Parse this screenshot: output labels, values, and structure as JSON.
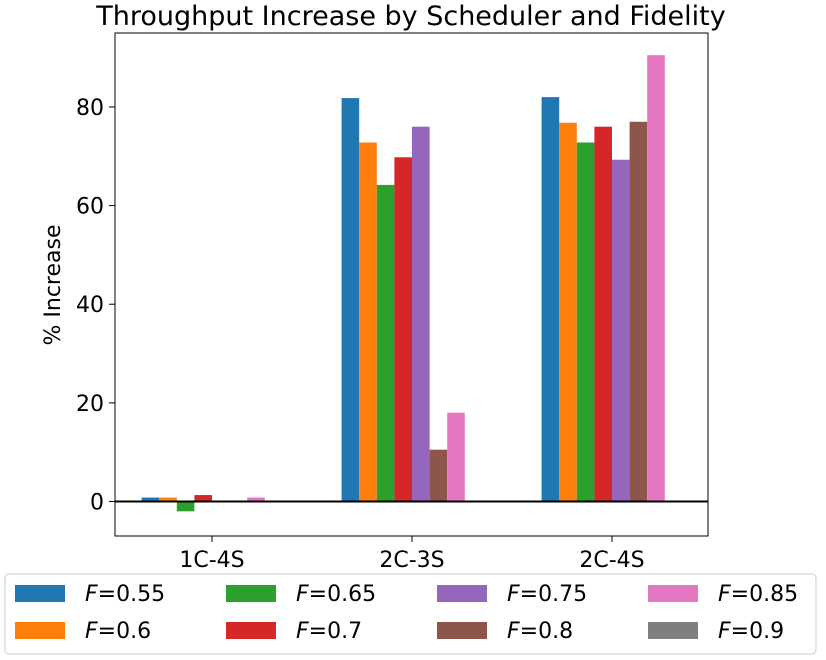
{
  "chart_data": {
    "type": "bar",
    "title": "Throughput Increase by Scheduler and Fidelity",
    "xlabel": "",
    "ylabel": "% Increase",
    "categories": [
      "1C-4S",
      "2C-3S",
      "2C-4S"
    ],
    "ylim": [
      -7,
      95
    ],
    "yticks": [
      0,
      20,
      40,
      60,
      80
    ],
    "zero_line": true,
    "grid": false,
    "legend_position": "bottom",
    "series": [
      {
        "name": "F=0.55",
        "var": "F",
        "val": "=0.55",
        "color": "#1f77b4",
        "values": [
          0.8,
          81.8,
          82.0
        ]
      },
      {
        "name": "F=0.6",
        "var": "F",
        "val": "=0.6",
        "color": "#ff7f0e",
        "values": [
          0.8,
          72.8,
          76.8
        ]
      },
      {
        "name": "F=0.65",
        "var": "F",
        "val": "=0.65",
        "color": "#2ca02c",
        "values": [
          -2.0,
          64.2,
          72.8
        ]
      },
      {
        "name": "F=0.7",
        "var": "F",
        "val": "=0.7",
        "color": "#d62728",
        "values": [
          1.3,
          69.8,
          76.0
        ]
      },
      {
        "name": "F=0.75",
        "var": "F",
        "val": "=0.75",
        "color": "#9467bd",
        "values": [
          0.0,
          76.0,
          69.3
        ]
      },
      {
        "name": "F=0.8",
        "var": "F",
        "val": "=0.8",
        "color": "#8c564b",
        "values": [
          0.0,
          10.5,
          77.0
        ]
      },
      {
        "name": "F=0.85",
        "var": "F",
        "val": "=0.85",
        "color": "#e377c2",
        "values": [
          0.8,
          18.0,
          90.5
        ]
      },
      {
        "name": "F=0.9",
        "var": "F",
        "val": "=0.9",
        "color": "#7f7f7f",
        "values": [
          0.0,
          0.0,
          0.0
        ]
      }
    ]
  }
}
